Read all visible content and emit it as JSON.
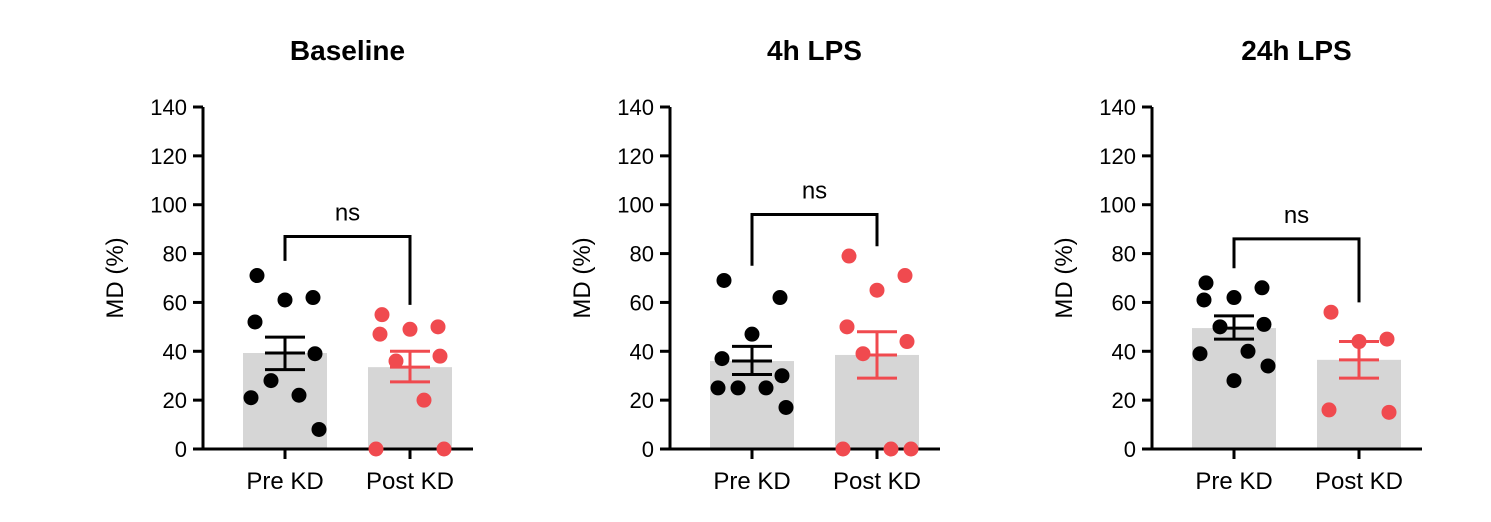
{
  "colors": {
    "bar": "#d6d6d6",
    "pre": "#000000",
    "post": "#f04a4f",
    "axis": "#000000"
  },
  "chart_data": [
    {
      "type": "bar",
      "title": "Baseline",
      "ylabel": "MD (%)",
      "ylim": [
        0,
        140
      ],
      "yticks": [
        0,
        20,
        40,
        60,
        80,
        100,
        120,
        140
      ],
      "categories": [
        "Pre KD",
        "Post KD"
      ],
      "series": [
        {
          "mean": 39.3,
          "sem_low": 32.5,
          "sem_high": 45.8,
          "points": [
            71,
            62,
            61,
            52,
            39,
            28,
            22,
            21,
            8
          ]
        },
        {
          "mean": 33.5,
          "sem_low": 27.5,
          "sem_high": 40,
          "points": [
            55,
            50,
            49,
            47,
            38,
            36,
            20,
            0,
            0
          ]
        }
      ],
      "comparison": {
        "label": "ns",
        "y": 87
      }
    },
    {
      "type": "bar",
      "title": "4h LPS",
      "ylabel": "MD (%)",
      "ylim": [
        0,
        140
      ],
      "yticks": [
        0,
        20,
        40,
        60,
        80,
        100,
        120,
        140
      ],
      "categories": [
        "Pre KD",
        "Post KD"
      ],
      "series": [
        {
          "mean": 36,
          "sem_low": 30.5,
          "sem_high": 42,
          "points": [
            69,
            62,
            47,
            37,
            30,
            25,
            25,
            25,
            17
          ]
        },
        {
          "mean": 38.5,
          "sem_low": 29,
          "sem_high": 48,
          "points": [
            79,
            71,
            65,
            50,
            44,
            39,
            0,
            0,
            0
          ]
        }
      ],
      "comparison": {
        "label": "ns",
        "y": 96
      }
    },
    {
      "type": "bar",
      "title": "24h LPS",
      "ylabel": "MD (%)",
      "ylim": [
        0,
        140
      ],
      "yticks": [
        0,
        20,
        40,
        60,
        80,
        100,
        120,
        140
      ],
      "categories": [
        "Pre KD",
        "Post KD"
      ],
      "series": [
        {
          "mean": 49.5,
          "sem_low": 45,
          "sem_high": 54.5,
          "points": [
            68,
            66,
            62,
            61,
            51,
            50,
            40,
            39,
            34,
            28
          ]
        },
        {
          "mean": 36.5,
          "sem_low": 29,
          "sem_high": 44,
          "points": [
            56,
            45,
            44,
            16,
            15
          ]
        }
      ],
      "comparison": {
        "label": "ns",
        "y": 86
      }
    }
  ]
}
